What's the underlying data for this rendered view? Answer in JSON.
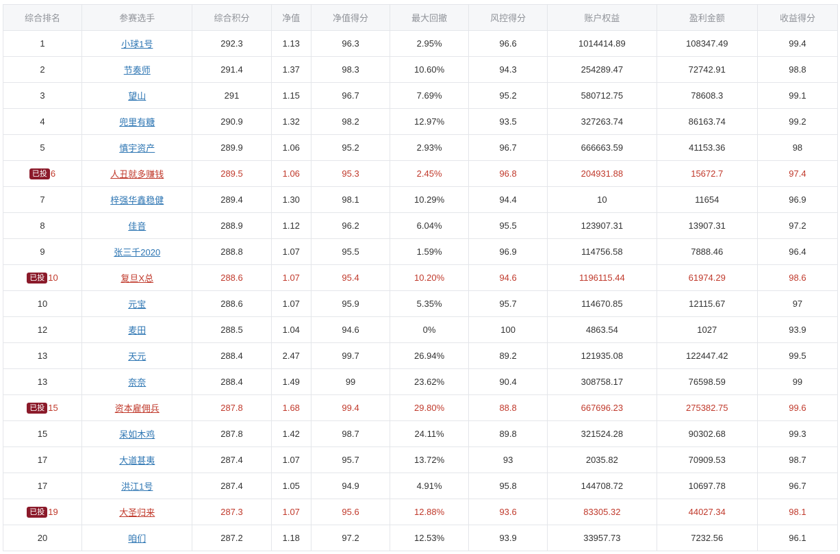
{
  "table": {
    "columns": [
      "综合排名",
      "参赛选手",
      "综合积分",
      "净值",
      "净值得分",
      "最大回撤",
      "风控得分",
      "账户权益",
      "盈利金额",
      "收益得分"
    ],
    "badge_label": "已投",
    "rows": [
      {
        "rank": "1",
        "player": "小球1号",
        "score": "292.3",
        "nav": "1.13",
        "nav_score": "96.3",
        "max_drawdown": "2.95%",
        "risk_score": "96.6",
        "equity": "1014414.89",
        "profit": "108347.49",
        "return_score": "99.4",
        "invested": false
      },
      {
        "rank": "2",
        "player": "节奏师",
        "score": "291.4",
        "nav": "1.37",
        "nav_score": "98.3",
        "max_drawdown": "10.60%",
        "risk_score": "94.3",
        "equity": "254289.47",
        "profit": "72742.91",
        "return_score": "98.8",
        "invested": false
      },
      {
        "rank": "3",
        "player": "望山",
        "score": "291",
        "nav": "1.15",
        "nav_score": "96.7",
        "max_drawdown": "7.69%",
        "risk_score": "95.2",
        "equity": "580712.75",
        "profit": "78608.3",
        "return_score": "99.1",
        "invested": false
      },
      {
        "rank": "4",
        "player": "兜里有糖",
        "score": "290.9",
        "nav": "1.32",
        "nav_score": "98.2",
        "max_drawdown": "12.97%",
        "risk_score": "93.5",
        "equity": "327263.74",
        "profit": "86163.74",
        "return_score": "99.2",
        "invested": false
      },
      {
        "rank": "5",
        "player": "慎宇资产",
        "score": "289.9",
        "nav": "1.06",
        "nav_score": "95.2",
        "max_drawdown": "2.93%",
        "risk_score": "96.7",
        "equity": "666663.59",
        "profit": "41153.36",
        "return_score": "98",
        "invested": false
      },
      {
        "rank": "6",
        "player": "人丑就多赚钱",
        "score": "289.5",
        "nav": "1.06",
        "nav_score": "95.3",
        "max_drawdown": "2.45%",
        "risk_score": "96.8",
        "equity": "204931.88",
        "profit": "15672.7",
        "return_score": "97.4",
        "invested": true
      },
      {
        "rank": "7",
        "player": "梓强华鑫稳健",
        "score": "289.4",
        "nav": "1.30",
        "nav_score": "98.1",
        "max_drawdown": "10.29%",
        "risk_score": "94.4",
        "equity": "10",
        "profit": "11654",
        "return_score": "96.9",
        "invested": false
      },
      {
        "rank": "8",
        "player": "佳音",
        "score": "288.9",
        "nav": "1.12",
        "nav_score": "96.2",
        "max_drawdown": "6.04%",
        "risk_score": "95.5",
        "equity": "123907.31",
        "profit": "13907.31",
        "return_score": "97.2",
        "invested": false
      },
      {
        "rank": "9",
        "player": "张三千2020",
        "score": "288.8",
        "nav": "1.07",
        "nav_score": "95.5",
        "max_drawdown": "1.59%",
        "risk_score": "96.9",
        "equity": "114756.58",
        "profit": "7888.46",
        "return_score": "96.4",
        "invested": false
      },
      {
        "rank": "10",
        "player": "复旦X总",
        "score": "288.6",
        "nav": "1.07",
        "nav_score": "95.4",
        "max_drawdown": "10.20%",
        "risk_score": "94.6",
        "equity": "1196115.44",
        "profit": "61974.29",
        "return_score": "98.6",
        "invested": true
      },
      {
        "rank": "10",
        "player": "元宝",
        "score": "288.6",
        "nav": "1.07",
        "nav_score": "95.9",
        "max_drawdown": "5.35%",
        "risk_score": "95.7",
        "equity": "114670.85",
        "profit": "12115.67",
        "return_score": "97",
        "invested": false
      },
      {
        "rank": "12",
        "player": "麦田",
        "score": "288.5",
        "nav": "1.04",
        "nav_score": "94.6",
        "max_drawdown": "0%",
        "risk_score": "100",
        "equity": "4863.54",
        "profit": "1027",
        "return_score": "93.9",
        "invested": false
      },
      {
        "rank": "13",
        "player": "天元",
        "score": "288.4",
        "nav": "2.47",
        "nav_score": "99.7",
        "max_drawdown": "26.94%",
        "risk_score": "89.2",
        "equity": "121935.08",
        "profit": "122447.42",
        "return_score": "99.5",
        "invested": false
      },
      {
        "rank": "13",
        "player": "奈奈",
        "score": "288.4",
        "nav": "1.49",
        "nav_score": "99",
        "max_drawdown": "23.62%",
        "risk_score": "90.4",
        "equity": "308758.17",
        "profit": "76598.59",
        "return_score": "99",
        "invested": false
      },
      {
        "rank": "15",
        "player": "资本雇佣兵",
        "score": "287.8",
        "nav": "1.68",
        "nav_score": "99.4",
        "max_drawdown": "29.80%",
        "risk_score": "88.8",
        "equity": "667696.23",
        "profit": "275382.75",
        "return_score": "99.6",
        "invested": true
      },
      {
        "rank": "15",
        "player": "呆如木鸡",
        "score": "287.8",
        "nav": "1.42",
        "nav_score": "98.7",
        "max_drawdown": "24.11%",
        "risk_score": "89.8",
        "equity": "321524.28",
        "profit": "90302.68",
        "return_score": "99.3",
        "invested": false
      },
      {
        "rank": "17",
        "player": "大道甚夷",
        "score": "287.4",
        "nav": "1.07",
        "nav_score": "95.7",
        "max_drawdown": "13.72%",
        "risk_score": "93",
        "equity": "2035.82",
        "profit": "70909.53",
        "return_score": "98.7",
        "invested": false
      },
      {
        "rank": "17",
        "player": "洪江1号",
        "score": "287.4",
        "nav": "1.05",
        "nav_score": "94.9",
        "max_drawdown": "4.91%",
        "risk_score": "95.8",
        "equity": "144708.72",
        "profit": "10697.78",
        "return_score": "96.7",
        "invested": false
      },
      {
        "rank": "19",
        "player": "大圣归来",
        "score": "287.3",
        "nav": "1.07",
        "nav_score": "95.6",
        "max_drawdown": "12.88%",
        "risk_score": "93.6",
        "equity": "83305.32",
        "profit": "44027.34",
        "return_score": "98.1",
        "invested": true
      },
      {
        "rank": "20",
        "player": "咱们",
        "score": "287.2",
        "nav": "1.18",
        "nav_score": "97.2",
        "max_drawdown": "12.53%",
        "risk_score": "93.9",
        "equity": "33957.73",
        "profit": "7232.56",
        "return_score": "96.1",
        "invested": false
      }
    ]
  }
}
